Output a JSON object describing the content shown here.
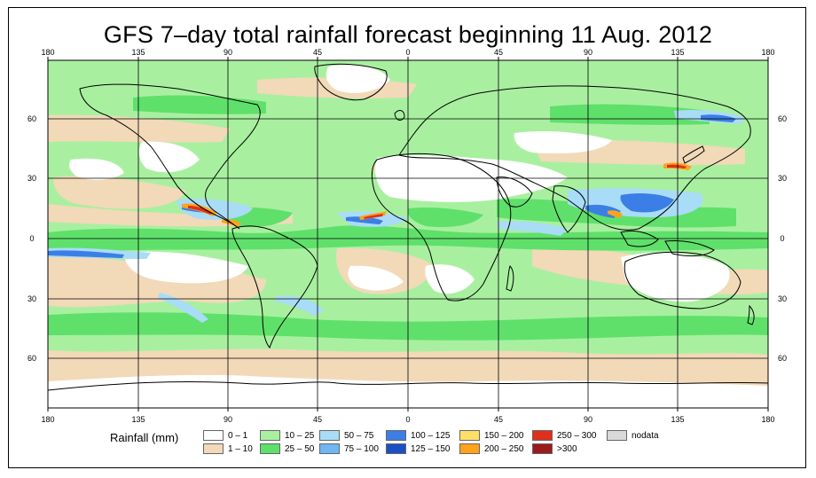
{
  "title": "GFS 7–day total rainfall forecast beginning 11 Aug. 2012",
  "axes": {
    "lon_ticks": [
      "180",
      "135",
      "90",
      "45",
      "0",
      "45",
      "90",
      "135",
      "180"
    ],
    "lat_ticks": [
      "60",
      "30",
      "0",
      "30",
      "60"
    ]
  },
  "legend": {
    "title": "Rainfall (mm)",
    "items": [
      {
        "label": "0 – 1",
        "color": "#ffffff"
      },
      {
        "label": "1 – 10",
        "color": "#f2d9b8"
      },
      {
        "label": "10 – 25",
        "color": "#a8f0a0"
      },
      {
        "label": "25 – 50",
        "color": "#5fe06b"
      },
      {
        "label": "50 – 75",
        "color": "#a9dcf7"
      },
      {
        "label": "75 – 100",
        "color": "#6fb6f2"
      },
      {
        "label": "100 – 125",
        "color": "#3b7fe6"
      },
      {
        "label": "125 – 150",
        "color": "#1c4fc4"
      },
      {
        "label": "150 – 200",
        "color": "#ffe066"
      },
      {
        "label": "200 – 250",
        "color": "#ffa31a"
      },
      {
        "label": "250 – 300",
        "color": "#e0301c"
      },
      {
        "label": ">300",
        "color": "#9a1b1b"
      },
      {
        "label": "nodata",
        "color": "#d9d9d9"
      }
    ]
  },
  "colors": {
    "ocean_base": "#a8f0a0",
    "land_outline": "#000000",
    "grid": "#000000"
  }
}
